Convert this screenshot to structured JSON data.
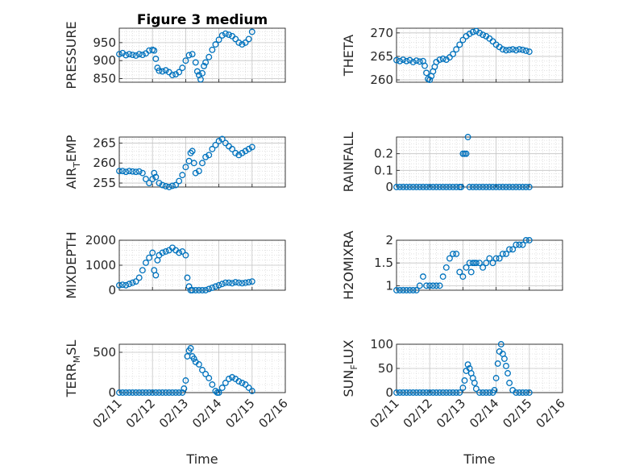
{
  "figure": {
    "title": "Figure 3 medium",
    "xlabel": "Time"
  },
  "x_ticks": [
    "02/11",
    "02/12",
    "02/13",
    "02/14",
    "02/15",
    "02/16"
  ],
  "colors": {
    "marker": "#0072BD",
    "grid": "#d0d0d0",
    "axis": "#262626"
  },
  "chart_data": [
    {
      "type": "scatter",
      "title": "Figure 3 medium",
      "ylabel": {
        "main": "PRESSURE",
        "sub": "",
        "tail": ""
      },
      "xlim": [
        0,
        5
      ],
      "ylim": [
        840,
        990
      ],
      "yticks": [
        850,
        900,
        950
      ],
      "series": [
        {
          "x": [
            0.0,
            0.1,
            0.2,
            0.3,
            0.4,
            0.5,
            0.6,
            0.7,
            0.8,
            0.9,
            1.0,
            1.05,
            1.1,
            1.15,
            1.2,
            1.3,
            1.4,
            1.5,
            1.6,
            1.7,
            1.8,
            1.9,
            2.0,
            2.1,
            2.2,
            2.3,
            2.35,
            2.4,
            2.45,
            2.5,
            2.55,
            2.6,
            2.7,
            2.8,
            2.9,
            3.0,
            3.1,
            3.2,
            3.3,
            3.4,
            3.5,
            3.6,
            3.7,
            3.8,
            3.9,
            4.0
          ],
          "y": [
            918,
            921,
            915,
            918,
            916,
            914,
            918,
            916,
            920,
            928,
            930,
            928,
            905,
            880,
            872,
            870,
            873,
            868,
            860,
            862,
            868,
            880,
            900,
            915,
            918,
            895,
            870,
            860,
            848,
            865,
            885,
            895,
            910,
            930,
            945,
            958,
            970,
            975,
            972,
            968,
            960,
            950,
            945,
            950,
            960,
            980
          ]
        }
      ]
    },
    {
      "type": "scatter",
      "ylabel": {
        "main": "THETA",
        "sub": "",
        "tail": ""
      },
      "xlim": [
        0,
        5
      ],
      "ylim": [
        259.5,
        271
      ],
      "yticks": [
        260,
        265,
        270
      ],
      "series": [
        {
          "x": [
            0.0,
            0.1,
            0.2,
            0.3,
            0.4,
            0.5,
            0.6,
            0.7,
            0.8,
            0.85,
            0.9,
            0.95,
            1.0,
            1.05,
            1.1,
            1.15,
            1.2,
            1.3,
            1.4,
            1.5,
            1.6,
            1.7,
            1.8,
            1.9,
            2.0,
            2.1,
            2.2,
            2.3,
            2.4,
            2.5,
            2.6,
            2.7,
            2.8,
            2.9,
            3.0,
            3.1,
            3.2,
            3.3,
            3.4,
            3.5,
            3.6,
            3.7,
            3.8,
            3.9,
            4.0
          ],
          "y": [
            264.2,
            264.0,
            264.3,
            264.0,
            264.2,
            263.8,
            264.1,
            263.9,
            264.0,
            263.0,
            261.5,
            260.2,
            260.0,
            260.8,
            261.8,
            262.8,
            263.8,
            264.3,
            264.5,
            264.3,
            264.8,
            265.5,
            266.5,
            267.5,
            268.5,
            269.3,
            269.8,
            270.2,
            270.4,
            270.0,
            269.6,
            269.3,
            268.8,
            268.2,
            267.5,
            267.0,
            266.5,
            266.3,
            266.4,
            266.5,
            266.3,
            266.5,
            266.4,
            266.2,
            266.0
          ]
        }
      ]
    },
    {
      "type": "scatter",
      "ylabel": {
        "main": "AIR",
        "sub": "T",
        "tail": "EMP"
      },
      "xlim": [
        0,
        5
      ],
      "ylim": [
        254,
        266.5
      ],
      "yticks": [
        255,
        260,
        265
      ],
      "series": [
        {
          "x": [
            0.0,
            0.1,
            0.2,
            0.3,
            0.4,
            0.5,
            0.6,
            0.7,
            0.8,
            0.9,
            1.0,
            1.05,
            1.1,
            1.2,
            1.3,
            1.4,
            1.5,
            1.6,
            1.7,
            1.8,
            1.9,
            2.0,
            2.1,
            2.15,
            2.2,
            2.25,
            2.3,
            2.4,
            2.5,
            2.6,
            2.7,
            2.8,
            2.9,
            3.0,
            3.1,
            3.2,
            3.3,
            3.4,
            3.5,
            3.6,
            3.7,
            3.8,
            3.9,
            4.0
          ],
          "y": [
            258.0,
            258.0,
            257.8,
            258.0,
            257.9,
            257.8,
            257.9,
            257.5,
            256.0,
            255.0,
            256.0,
            257.5,
            256.5,
            255.0,
            254.5,
            254.2,
            254.0,
            254.3,
            254.5,
            255.5,
            257.0,
            259.0,
            260.5,
            262.5,
            263.0,
            260.0,
            257.5,
            258.0,
            260.0,
            261.5,
            262.0,
            263.5,
            264.5,
            265.5,
            266.0,
            265.0,
            264.2,
            263.5,
            262.5,
            262.0,
            262.5,
            263.0,
            263.5,
            264.0
          ]
        }
      ]
    },
    {
      "type": "scatter",
      "ylabel": {
        "main": "RAINFALL",
        "sub": "",
        "tail": ""
      },
      "xlim": [
        0,
        5
      ],
      "ylim": [
        0,
        0.3
      ],
      "yticks": [
        0,
        0.1,
        0.2
      ],
      "series": [
        {
          "x": [
            0.0,
            0.1,
            0.2,
            0.3,
            0.4,
            0.5,
            0.6,
            0.7,
            0.8,
            0.9,
            1.0,
            1.1,
            1.2,
            1.3,
            1.4,
            1.5,
            1.6,
            1.7,
            1.8,
            1.9,
            1.95,
            2.0,
            2.05,
            2.1,
            2.15,
            2.2,
            2.3,
            2.4,
            2.5,
            2.6,
            2.7,
            2.8,
            2.9,
            3.0,
            3.1,
            3.2,
            3.3,
            3.4,
            3.5,
            3.6,
            3.7,
            3.8,
            3.9,
            4.0
          ],
          "y": [
            0,
            0,
            0,
            0,
            0,
            0,
            0,
            0,
            0,
            0,
            0,
            0,
            0,
            0,
            0,
            0,
            0,
            0,
            0,
            0,
            0,
            0.2,
            0.2,
            0.2,
            0.3,
            0,
            0,
            0,
            0,
            0,
            0,
            0,
            0,
            0,
            0,
            0,
            0,
            0,
            0,
            0,
            0,
            0,
            0,
            0
          ]
        }
      ]
    },
    {
      "type": "scatter",
      "ylabel": {
        "main": "MIXDEPTH",
        "sub": "",
        "tail": ""
      },
      "xlim": [
        0,
        5
      ],
      "ylim": [
        0,
        2000
      ],
      "yticks": [
        0,
        1000,
        2000
      ],
      "series": [
        {
          "x": [
            0.0,
            0.1,
            0.2,
            0.3,
            0.4,
            0.5,
            0.6,
            0.7,
            0.8,
            0.9,
            1.0,
            1.05,
            1.1,
            1.15,
            1.2,
            1.3,
            1.4,
            1.5,
            1.6,
            1.7,
            1.8,
            1.9,
            2.0,
            2.05,
            2.1,
            2.15,
            2.2,
            2.3,
            2.4,
            2.5,
            2.6,
            2.7,
            2.8,
            2.9,
            3.0,
            3.1,
            3.2,
            3.3,
            3.4,
            3.5,
            3.6,
            3.7,
            3.8,
            3.9,
            4.0
          ],
          "y": [
            200,
            220,
            200,
            250,
            300,
            350,
            500,
            800,
            1100,
            1300,
            1500,
            800,
            600,
            1200,
            1400,
            1500,
            1550,
            1600,
            1700,
            1600,
            1500,
            1550,
            1400,
            500,
            150,
            0,
            0,
            0,
            0,
            0,
            0,
            50,
            100,
            150,
            200,
            250,
            300,
            300,
            280,
            320,
            300,
            280,
            300,
            320,
            350
          ]
        }
      ]
    },
    {
      "type": "scatter",
      "ylabel": {
        "main": "H2OMIXRA",
        "sub": "",
        "tail": ""
      },
      "xlim": [
        0,
        5
      ],
      "ylim": [
        0.9,
        2.0
      ],
      "yticks": [
        1,
        1.5,
        2
      ],
      "series": [
        {
          "x": [
            0.0,
            0.1,
            0.2,
            0.3,
            0.4,
            0.5,
            0.6,
            0.7,
            0.8,
            0.9,
            1.0,
            1.1,
            1.2,
            1.3,
            1.4,
            1.5,
            1.6,
            1.7,
            1.8,
            1.9,
            2.0,
            2.1,
            2.2,
            2.25,
            2.3,
            2.35,
            2.4,
            2.5,
            2.6,
            2.7,
            2.8,
            2.9,
            3.0,
            3.1,
            3.2,
            3.3,
            3.4,
            3.5,
            3.6,
            3.7,
            3.8,
            3.9,
            4.0
          ],
          "y": [
            0.9,
            0.9,
            0.9,
            0.9,
            0.9,
            0.9,
            0.9,
            1.0,
            1.2,
            1.0,
            1.0,
            1.0,
            1.0,
            1.0,
            1.2,
            1.4,
            1.6,
            1.7,
            1.7,
            1.3,
            1.2,
            1.4,
            1.5,
            1.3,
            1.5,
            1.5,
            1.5,
            1.5,
            1.4,
            1.5,
            1.6,
            1.5,
            1.6,
            1.6,
            1.7,
            1.7,
            1.8,
            1.8,
            1.9,
            1.9,
            1.9,
            2.0,
            2.0
          ]
        }
      ]
    },
    {
      "type": "scatter",
      "ylabel": {
        "main": "TERR",
        "sub": "M",
        "tail": "SL"
      },
      "xlim": [
        0,
        5
      ],
      "ylim": [
        0,
        600
      ],
      "yticks": [
        0,
        500
      ],
      "series": [
        {
          "x": [
            0.0,
            0.1,
            0.2,
            0.3,
            0.4,
            0.5,
            0.6,
            0.7,
            0.8,
            0.9,
            1.0,
            1.1,
            1.2,
            1.3,
            1.4,
            1.5,
            1.6,
            1.7,
            1.8,
            1.9,
            1.95,
            2.0,
            2.05,
            2.1,
            2.15,
            2.2,
            2.25,
            2.3,
            2.4,
            2.5,
            2.6,
            2.7,
            2.8,
            2.9,
            2.95,
            3.0,
            3.1,
            3.2,
            3.3,
            3.4,
            3.5,
            3.6,
            3.7,
            3.8,
            3.9,
            4.0
          ],
          "y": [
            0,
            0,
            0,
            0,
            0,
            0,
            0,
            0,
            0,
            0,
            0,
            0,
            0,
            0,
            0,
            0,
            0,
            0,
            0,
            0,
            50,
            150,
            450,
            520,
            550,
            450,
            420,
            380,
            350,
            280,
            230,
            180,
            100,
            20,
            0,
            0,
            60,
            120,
            170,
            190,
            170,
            140,
            120,
            100,
            60,
            20
          ]
        }
      ]
    },
    {
      "type": "scatter",
      "ylabel": {
        "main": "SUN",
        "sub": "F",
        "tail": "LUX"
      },
      "xlim": [
        0,
        5
      ],
      "ylim": [
        0,
        100
      ],
      "yticks": [
        0,
        50,
        100
      ],
      "series": [
        {
          "x": [
            0.0,
            0.1,
            0.2,
            0.3,
            0.4,
            0.5,
            0.6,
            0.7,
            0.8,
            0.9,
            1.0,
            1.1,
            1.2,
            1.3,
            1.4,
            1.5,
            1.6,
            1.7,
            1.8,
            1.9,
            2.0,
            2.05,
            2.1,
            2.15,
            2.2,
            2.25,
            2.3,
            2.35,
            2.4,
            2.5,
            2.6,
            2.7,
            2.8,
            2.9,
            2.95,
            3.0,
            3.05,
            3.1,
            3.15,
            3.2,
            3.25,
            3.3,
            3.35,
            3.4,
            3.5,
            3.6,
            3.7,
            3.8,
            3.9,
            4.0
          ],
          "y": [
            0,
            0,
            0,
            0,
            0,
            0,
            0,
            0,
            0,
            0,
            0,
            0,
            0,
            0,
            0,
            0,
            0,
            0,
            0,
            0,
            10,
            25,
            45,
            58,
            50,
            40,
            30,
            20,
            8,
            0,
            0,
            0,
            0,
            0,
            5,
            30,
            60,
            85,
            100,
            80,
            70,
            55,
            40,
            20,
            5,
            0,
            0,
            0,
            0,
            0
          ]
        }
      ]
    }
  ]
}
